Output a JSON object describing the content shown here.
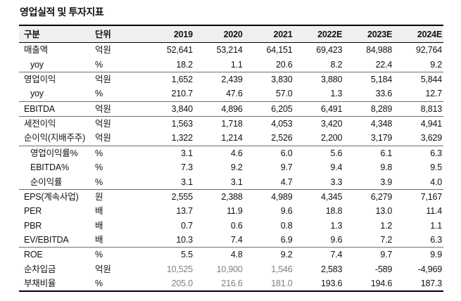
{
  "title": "영업실적 및 투자지표",
  "colors": {
    "text": "#111111",
    "muted_text": "#7f7f7f",
    "header_bg": "#efefef",
    "outer_border": "#000000",
    "group_line": "#6e6e6e"
  },
  "table": {
    "columns": [
      "구분",
      "단위",
      "2019",
      "2020",
      "2021",
      "2022E",
      "2023E",
      "2024E"
    ],
    "rows": [
      {
        "label": "매출액",
        "unit": "억원",
        "values": [
          "52,641",
          "53,214",
          "64,151",
          "69,423",
          "84,988",
          "92,764"
        ],
        "indent": false,
        "group_end": false,
        "muted_hist": false
      },
      {
        "label": "yoy",
        "unit": "%",
        "values": [
          "18.2",
          "1.1",
          "20.6",
          "8.2",
          "22.4",
          "9.2"
        ],
        "indent": true,
        "group_end": true,
        "muted_hist": false
      },
      {
        "label": "영업이익",
        "unit": "억원",
        "values": [
          "1,652",
          "2,439",
          "3,830",
          "3,880",
          "5,184",
          "5,844"
        ],
        "indent": false,
        "group_end": false,
        "muted_hist": false
      },
      {
        "label": "yoy",
        "unit": "%",
        "values": [
          "210.7",
          "47.6",
          "57.0",
          "1.3",
          "33.6",
          "12.7"
        ],
        "indent": true,
        "group_end": true,
        "muted_hist": false
      },
      {
        "label": "EBITDA",
        "unit": "억원",
        "values": [
          "3,840",
          "4,896",
          "6,205",
          "6,491",
          "8,289",
          "8,813"
        ],
        "indent": false,
        "group_end": true,
        "muted_hist": false
      },
      {
        "label": "세전이익",
        "unit": "억원",
        "values": [
          "1,563",
          "1,718",
          "4,053",
          "3,420",
          "4,348",
          "4,941"
        ],
        "indent": false,
        "group_end": false,
        "muted_hist": false
      },
      {
        "label": "순이익(지배주주)",
        "unit": "억원",
        "values": [
          "1,322",
          "1,214",
          "2,526",
          "2,200",
          "3,179",
          "3,629"
        ],
        "indent": false,
        "group_end": true,
        "muted_hist": false
      },
      {
        "label": "영업이익률%",
        "unit": "%",
        "values": [
          "3.1",
          "4.6",
          "6.0",
          "5.6",
          "6.1",
          "6.3"
        ],
        "indent": true,
        "group_end": false,
        "muted_hist": false
      },
      {
        "label": "EBITDA%",
        "unit": "%",
        "values": [
          "7.3",
          "9.2",
          "9.7",
          "9.4",
          "9.8",
          "9.5"
        ],
        "indent": true,
        "group_end": false,
        "muted_hist": false
      },
      {
        "label": "순이익률",
        "unit": "%",
        "values": [
          "3.1",
          "3.1",
          "4.7",
          "3.3",
          "3.9",
          "4.0"
        ],
        "indent": true,
        "group_end": true,
        "muted_hist": false
      },
      {
        "label": "EPS(계속사업)",
        "unit": "원",
        "values": [
          "2,555",
          "2,388",
          "4,989",
          "4,345",
          "6,279",
          "7,167"
        ],
        "indent": false,
        "group_end": false,
        "muted_hist": false
      },
      {
        "label": "PER",
        "unit": "배",
        "values": [
          "13.7",
          "11.9",
          "9.6",
          "18.8",
          "13.0",
          "11.4"
        ],
        "indent": false,
        "group_end": false,
        "muted_hist": false
      },
      {
        "label": "PBR",
        "unit": "배",
        "values": [
          "0.7",
          "0.6",
          "0.8",
          "1.3",
          "1.2",
          "1.1"
        ],
        "indent": false,
        "group_end": false,
        "muted_hist": false
      },
      {
        "label": "EV/EBITDA",
        "unit": "배",
        "values": [
          "10.3",
          "7.4",
          "6.9",
          "9.6",
          "7.2",
          "6.3"
        ],
        "indent": false,
        "group_end": true,
        "muted_hist": false
      },
      {
        "label": "ROE",
        "unit": "%",
        "values": [
          "5.5",
          "4.8",
          "9.2",
          "7.4",
          "9.7",
          "9.9"
        ],
        "indent": false,
        "group_end": false,
        "muted_hist": false
      },
      {
        "label": "순차입금",
        "unit": "억원",
        "values": [
          "10,525",
          "10,900",
          "1,546",
          "2,583",
          "-589",
          "-4,969"
        ],
        "indent": false,
        "group_end": false,
        "muted_hist": true
      },
      {
        "label": "부채비율",
        "unit": "%",
        "values": [
          "205.0",
          "216.6",
          "181.0",
          "193.6",
          "194.6",
          "187.3"
        ],
        "indent": false,
        "group_end": false,
        "muted_hist": true
      }
    ]
  }
}
